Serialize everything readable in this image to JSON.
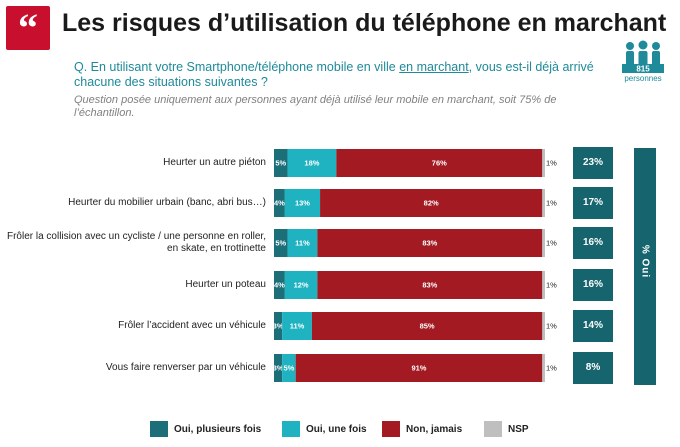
{
  "header": {
    "title": "Les risques d’utilisation du téléphone en marchant",
    "question_before": "Q. En utilisant votre Smartphone/téléphone mobile en ville ",
    "question_underlined": "en marchant",
    "question_after": ", vous est-il déjà arrivé chacune des situations suivantes ?",
    "note": "Question posée uniquement aux personnes ayant déjà utilisé leur mobile en marchant, soit 75% de l’échantillon.",
    "sample_number": "815",
    "sample_unit": "personnes"
  },
  "oui_column_label": "% Oui",
  "colors": {
    "oui_plusieurs": "#1c6f79",
    "oui_une": "#1fb3c2",
    "non": "#a31a22",
    "nsp": "#bfbfbf",
    "oui_box": "#15646e",
    "quote": "#c8102e"
  },
  "chart_data": {
    "type": "bar",
    "orientation": "horizontal",
    "stacked": true,
    "categories": [
      "Heurter un autre piéton",
      "Heurter du mobilier urbain (banc, abri bus…)",
      "Frôler la collision avec un cycliste / une personne en roller, en skate, en trottinette",
      "Heurter un poteau",
      "Frôler l’accident avec un véhicule",
      "Vous faire renverser par un véhicule"
    ],
    "series": [
      {
        "name": "Oui, plusieurs fois",
        "values": [
          5,
          4,
          5,
          4,
          3,
          3
        ]
      },
      {
        "name": "Oui, une fois",
        "values": [
          18,
          13,
          11,
          12,
          11,
          5
        ]
      },
      {
        "name": "Non, jamais",
        "values": [
          76,
          82,
          83,
          83,
          85,
          91
        ]
      },
      {
        "name": "NSP",
        "values": [
          1,
          1,
          1,
          1,
          1,
          1
        ]
      }
    ],
    "labels": [
      [
        "5%",
        "18%",
        "76%",
        "1%"
      ],
      [
        "4%",
        "13%",
        "82%",
        "1%"
      ],
      [
        "5%",
        "11%",
        "83%",
        "1%"
      ],
      [
        "4%",
        "12%",
        "83%",
        "1%"
      ],
      [
        "3%",
        "11%",
        "85%",
        "1%"
      ],
      [
        "3%",
        "5%",
        "91%",
        "1%"
      ]
    ],
    "oui_totals": [
      "23%",
      "17%",
      "16%",
      "16%",
      "14%",
      "8%"
    ],
    "xlim": [
      0,
      100
    ],
    "legend_position": "bottom"
  }
}
